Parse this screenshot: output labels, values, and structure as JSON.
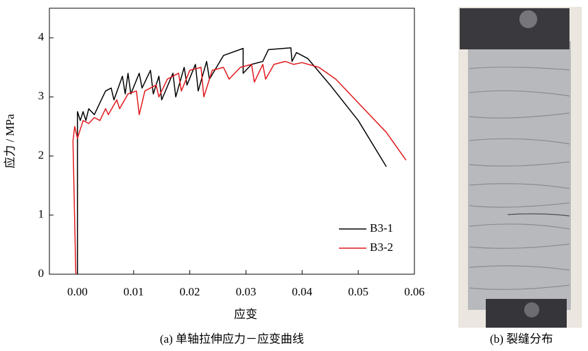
{
  "chart_data": {
    "type": "line",
    "x_label": "应变",
    "y_label": "应力 / MPa",
    "caption": "(a)  单轴拉伸应力－应变曲线",
    "xlim": [
      -0.005,
      0.06
    ],
    "ylim": [
      0,
      4.5
    ],
    "xticks": [
      {
        "value": 0,
        "label": "0.00"
      },
      {
        "value": 0.01,
        "label": "0.01"
      },
      {
        "value": 0.02,
        "label": "0.02"
      },
      {
        "value": 0.03,
        "label": "0.03"
      },
      {
        "value": 0.04,
        "label": "0.04"
      },
      {
        "value": 0.05,
        "label": "0.05"
      },
      {
        "value": 0.06,
        "label": "0.06"
      }
    ],
    "yticks": [
      0,
      1,
      2,
      3,
      4
    ],
    "legend": "lower right",
    "grid": false,
    "series": [
      {
        "name": "B3-1",
        "color": "#000000",
        "x": [
          0,
          0,
          0.0005,
          0.001,
          0.0015,
          0.002,
          0.003,
          0.004,
          0.005,
          0.006,
          0.0065,
          0.008,
          0.0085,
          0.009,
          0.0095,
          0.011,
          0.0115,
          0.013,
          0.0135,
          0.0145,
          0.015,
          0.017,
          0.0175,
          0.019,
          0.0195,
          0.021,
          0.0215,
          0.023,
          0.0235,
          0.026,
          0.0295,
          0.0295,
          0.031,
          0.033,
          0.034,
          0.038,
          0.0382,
          0.039,
          0.041,
          0.045,
          0.05,
          0.055
        ],
        "values": [
          0,
          2.75,
          2.6,
          2.75,
          2.6,
          2.8,
          2.7,
          2.9,
          3.1,
          3.15,
          2.95,
          3.35,
          3.05,
          3.4,
          3.05,
          3.4,
          3.15,
          3.45,
          3.05,
          3.35,
          2.95,
          3.4,
          3.0,
          3.5,
          3.2,
          3.55,
          3.1,
          3.6,
          3.3,
          3.7,
          3.82,
          3.4,
          3.55,
          3.6,
          3.8,
          3.83,
          3.6,
          3.75,
          3.65,
          3.2,
          2.6,
          1.82
        ]
      },
      {
        "name": "B3-2",
        "color": "#e0171b",
        "x": [
          -0.0003,
          -0.0008,
          -0.0005,
          0,
          0.001,
          0.002,
          0.003,
          0.004,
          0.005,
          0.0055,
          0.007,
          0.0075,
          0.009,
          0.0105,
          0.011,
          0.012,
          0.014,
          0.0145,
          0.016,
          0.018,
          0.0185,
          0.02,
          0.022,
          0.0225,
          0.024,
          0.026,
          0.027,
          0.029,
          0.031,
          0.0315,
          0.033,
          0.0335,
          0.035,
          0.037,
          0.0385,
          0.04,
          0.043,
          0.046,
          0.05,
          0.055,
          0.0585
        ],
        "values": [
          0,
          2.25,
          2.5,
          2.3,
          2.6,
          2.55,
          2.65,
          2.6,
          2.8,
          2.7,
          2.95,
          2.8,
          3.05,
          3.1,
          2.7,
          3.1,
          3.2,
          3.0,
          3.3,
          3.4,
          3.1,
          3.45,
          3.5,
          3.0,
          3.45,
          3.5,
          3.3,
          3.5,
          3.55,
          3.25,
          3.55,
          3.3,
          3.55,
          3.6,
          3.55,
          3.58,
          3.5,
          3.3,
          2.9,
          2.4,
          1.93
        ]
      }
    ]
  },
  "image": {
    "caption": "(b)  裂缝分布"
  }
}
